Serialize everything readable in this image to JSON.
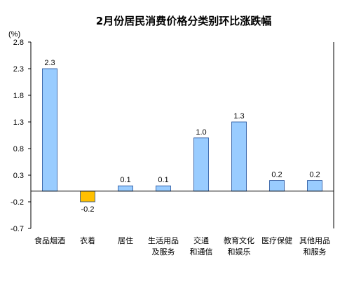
{
  "chart_data": {
    "type": "bar",
    "title": "2月份居民消费价格分类别环比涨跌幅",
    "unit_label": "(%)",
    "ylim": [
      -0.7,
      2.8
    ],
    "yticks": [
      "2.8",
      "2.3",
      "1.8",
      "1.3",
      "0.8",
      "0.3",
      "-0.2",
      "-0.7"
    ],
    "categories": [
      [
        "食品烟酒"
      ],
      [
        "衣着"
      ],
      [
        "居住"
      ],
      [
        "生活用品",
        "及服务"
      ],
      [
        "交通",
        "和通信"
      ],
      [
        "教育文化",
        "和娱乐"
      ],
      [
        "医疗保健"
      ],
      [
        "其他用品",
        "和服务"
      ]
    ],
    "values": [
      2.3,
      -0.2,
      0.1,
      0.1,
      1.0,
      1.3,
      0.2,
      0.2
    ],
    "value_labels": [
      "2.3",
      "-0.2",
      "0.1",
      "0.1",
      "1.0",
      "1.3",
      "0.2",
      "0.2"
    ],
    "colors": {
      "positive": "#99CCFF",
      "negative": "#FFC000",
      "bar_stroke": "#1F4E9A",
      "axis": "#000000",
      "text": "#000000"
    },
    "grid": false,
    "legend": "none"
  }
}
